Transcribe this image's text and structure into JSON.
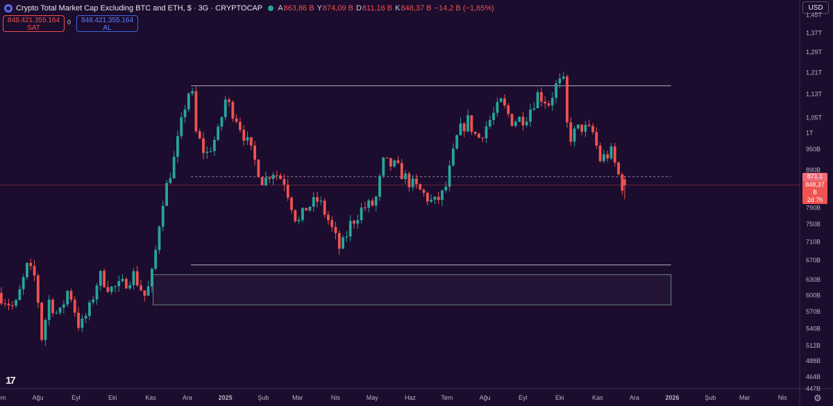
{
  "header": {
    "title": "Crypto Total Market Cap Excluding BTC and ETH, $ · 3G · CRYPTOCAP",
    "open_label": "A",
    "open": "863,86 B",
    "high_label": "Y",
    "high": "874,09 B",
    "low_label": "D",
    "low": "811,16 B",
    "close_label": "K",
    "close": "848,37 B",
    "change": "−14,2 B (−1,65%)"
  },
  "trade": {
    "sell_price": "848.421.355.164",
    "sell_label": "SAT",
    "spread": "0",
    "buy_price": "848.421.355.164",
    "buy_label": "AL"
  },
  "currency": "USD",
  "price_tags": {
    "reference": "871,1 B",
    "current": "848,37 B",
    "countdown": "2d 7h"
  },
  "colors": {
    "background": "#1c0c2e",
    "up": "#26a69a",
    "down": "#ef5350",
    "level_line": "#b8b0c8"
  },
  "chart_data": {
    "type": "candlestick",
    "title": "Crypto Total Market Cap Excluding BTC and ETH, $ · 3G · CRYPTOCAP",
    "scale": "log",
    "ylim": [
      447,
      1520
    ],
    "y_ticks": [
      "1,45 T",
      "1,37 T",
      "1,29 T",
      "1,21 T",
      "1,13 T",
      "1,05 T",
      "1 T",
      "950 B",
      "890 B",
      "790 B",
      "750 B",
      "710 B",
      "670 B",
      "630 B",
      "600 B",
      "570 B",
      "540 B",
      "512 B",
      "488 B",
      "464 B",
      "447 B"
    ],
    "x_ticks": [
      "Tem",
      "Ağu",
      "Eyl",
      "Eki",
      "Kas",
      "Ara",
      "2025",
      "Şub",
      "Mar",
      "Nis",
      "May",
      "Haz",
      "Tem",
      "Ağu",
      "Eyl",
      "Eki",
      "Kas",
      "Ara",
      "2026",
      "Şub",
      "Mar",
      "Nis"
    ],
    "x_range": [
      "2024-07-01",
      "2026-04-15"
    ],
    "anchors": [
      [
        "2024-07-01",
        604
      ],
      [
        "2024-07-08",
        590
      ],
      [
        "2024-07-15",
        575
      ],
      [
        "2024-07-25",
        655
      ],
      [
        "2024-08-02",
        630
      ],
      [
        "2024-08-05",
        515
      ],
      [
        "2024-08-12",
        590
      ],
      [
        "2024-08-20",
        560
      ],
      [
        "2024-08-28",
        615
      ],
      [
        "2024-09-06",
        540
      ],
      [
        "2024-09-14",
        575
      ],
      [
        "2024-09-22",
        640
      ],
      [
        "2024-10-01",
        612
      ],
      [
        "2024-10-10",
        618
      ],
      [
        "2024-10-20",
        640
      ],
      [
        "2024-10-30",
        595
      ],
      [
        "2024-11-05",
        650
      ],
      [
        "2024-11-12",
        800
      ],
      [
        "2024-11-22",
        920
      ],
      [
        "2024-12-02",
        1110
      ],
      [
        "2024-12-06",
        1165
      ],
      [
        "2024-12-10",
        1000
      ],
      [
        "2024-12-18",
        930
      ],
      [
        "2024-12-28",
        1000
      ],
      [
        "2025-01-03",
        1110
      ],
      [
        "2025-01-12",
        1050
      ],
      [
        "2025-01-22",
        960
      ],
      [
        "2025-02-03",
        855
      ],
      [
        "2025-02-10",
        890
      ],
      [
        "2025-02-20",
        860
      ],
      [
        "2025-03-03",
        750
      ],
      [
        "2025-03-10",
        790
      ],
      [
        "2025-03-20",
        810
      ],
      [
        "2025-03-28",
        760
      ],
      [
        "2025-04-07",
        690
      ],
      [
        "2025-04-15",
        750
      ],
      [
        "2025-04-25",
        790
      ],
      [
        "2025-05-05",
        800
      ],
      [
        "2025-05-12",
        910
      ],
      [
        "2025-05-22",
        900
      ],
      [
        "2025-06-01",
        860
      ],
      [
        "2025-06-12",
        830
      ],
      [
        "2025-06-22",
        800
      ],
      [
        "2025-07-01",
        830
      ],
      [
        "2025-07-12",
        1000
      ],
      [
        "2025-07-20",
        1040
      ],
      [
        "2025-07-28",
        980
      ],
      [
        "2025-08-10",
        1060
      ],
      [
        "2025-08-16",
        1100
      ],
      [
        "2025-08-25",
        1040
      ],
      [
        "2025-09-05",
        1050
      ],
      [
        "2025-09-15",
        1130
      ],
      [
        "2025-09-24",
        1100
      ],
      [
        "2025-10-01",
        1170
      ],
      [
        "2025-10-06",
        1170
      ],
      [
        "2025-10-10",
        980
      ],
      [
        "2025-10-20",
        1020
      ],
      [
        "2025-10-30",
        1000
      ],
      [
        "2025-11-05",
        920
      ],
      [
        "2025-11-14",
        940
      ],
      [
        "2025-11-20",
        875
      ],
      [
        "2025-11-22",
        848.37
      ]
    ],
    "last_candle": {
      "date": "2025-11-22",
      "open": 863.86,
      "high": 874.09,
      "low": 811.16,
      "close": 848.37
    },
    "levels": [
      {
        "type": "line",
        "price": 1160,
        "from": "2024-12-04",
        "to": "2025-12-31"
      },
      {
        "type": "line",
        "price": 660,
        "from": "2024-12-04",
        "to": "2025-12-31"
      },
      {
        "type": "dashed",
        "price": 871.1,
        "from": "2024-12-04",
        "to": "2025-12-31"
      },
      {
        "type": "zone",
        "top": 640,
        "bottom": 582,
        "from": "2024-11-03",
        "to": "2025-12-31"
      }
    ]
  }
}
